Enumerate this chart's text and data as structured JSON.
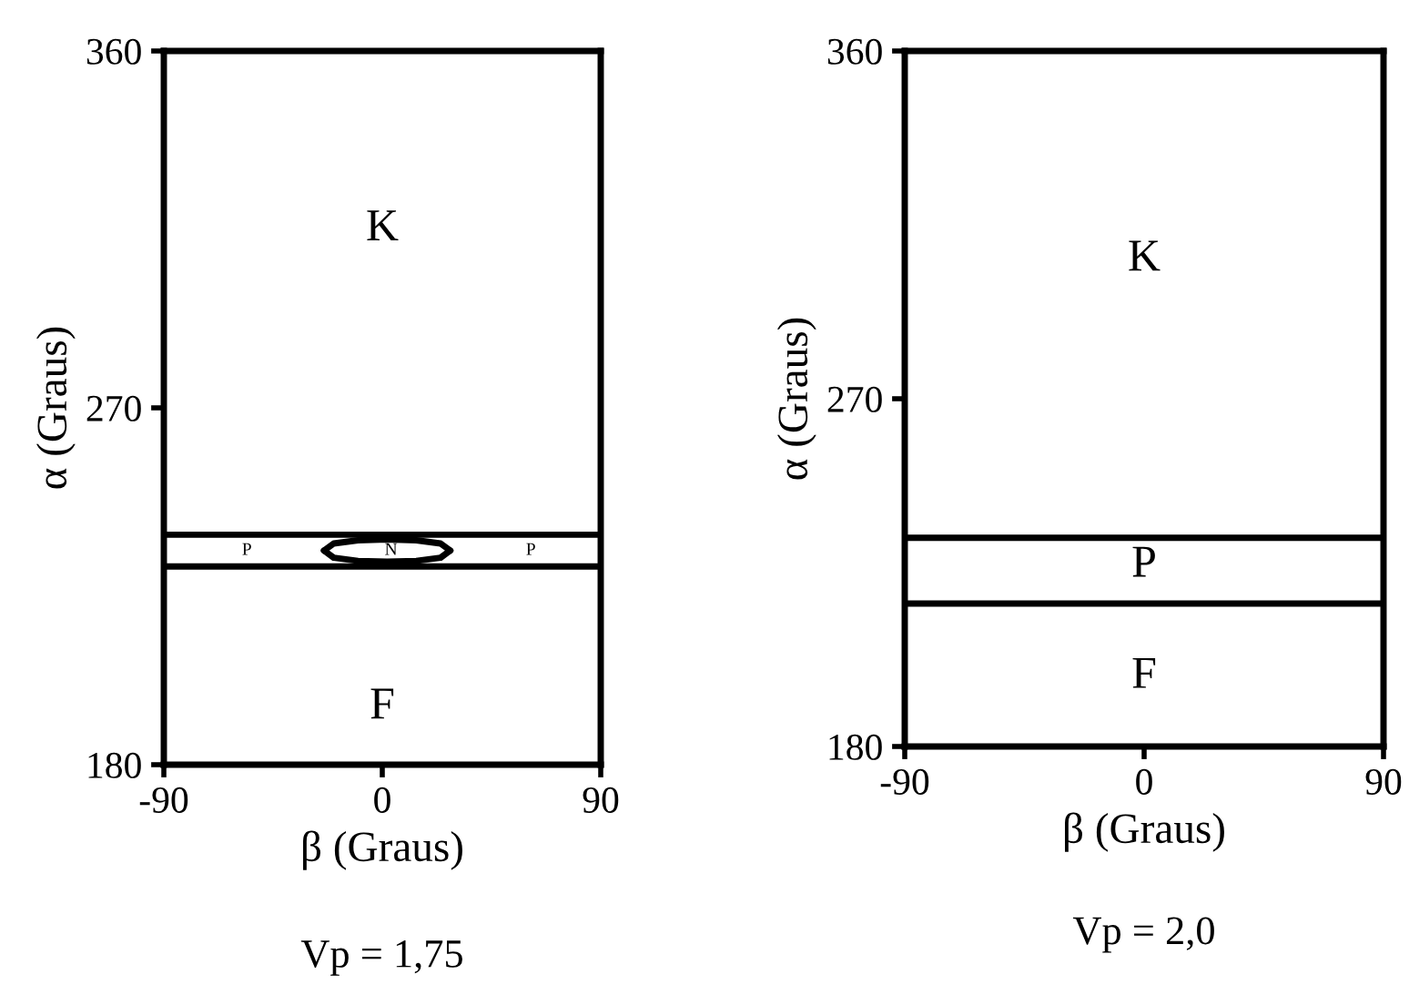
{
  "chart_data": [
    {
      "type": "line",
      "title": "Vp = 1,75",
      "xlabel": "β (Graus)",
      "ylabel": "α (Graus)",
      "xlim": [
        -90,
        90
      ],
      "ylim": [
        180,
        360
      ],
      "xticks": [
        -90,
        0,
        90
      ],
      "yticks": [
        180,
        270,
        360
      ],
      "grid": false,
      "legend": false,
      "series": [
        {
          "color": "#000000",
          "x": [
            -90,
            90
          ],
          "values": [
            238,
            238
          ]
        },
        {
          "color": "#000000",
          "x": [
            -90,
            90
          ],
          "values": [
            230,
            230
          ]
        },
        {
          "color": "#000000",
          "x": [
            -24,
            -20,
            -10,
            2,
            14,
            24,
            28
          ],
          "values": [
            234,
            235.8,
            236.6,
            236.8,
            236.6,
            235.8,
            234
          ]
        },
        {
          "color": "#000000",
          "x": [
            -24,
            -20,
            -10,
            2,
            14,
            24,
            28
          ],
          "values": [
            234,
            232.2,
            231.4,
            231.2,
            231.4,
            232.2,
            234
          ]
        }
      ],
      "annotations": [
        "K",
        "P",
        "N",
        "P",
        "F"
      ]
    },
    {
      "type": "line",
      "title": "Vp = 2,0",
      "xlabel": "β (Graus)",
      "ylabel": "α (Graus)",
      "xlim": [
        -90,
        90
      ],
      "ylim": [
        180,
        360
      ],
      "xticks": [
        -90,
        0,
        90
      ],
      "yticks": [
        180,
        270,
        360
      ],
      "grid": false,
      "legend": false,
      "series": [
        {
          "color": "#000000",
          "x": [
            -90,
            90
          ],
          "values": [
            234,
            234
          ]
        },
        {
          "color": "#000000",
          "x": [
            -90,
            90
          ],
          "values": [
            217,
            217
          ]
        }
      ],
      "annotations": [
        "K",
        "P",
        "F"
      ]
    }
  ]
}
